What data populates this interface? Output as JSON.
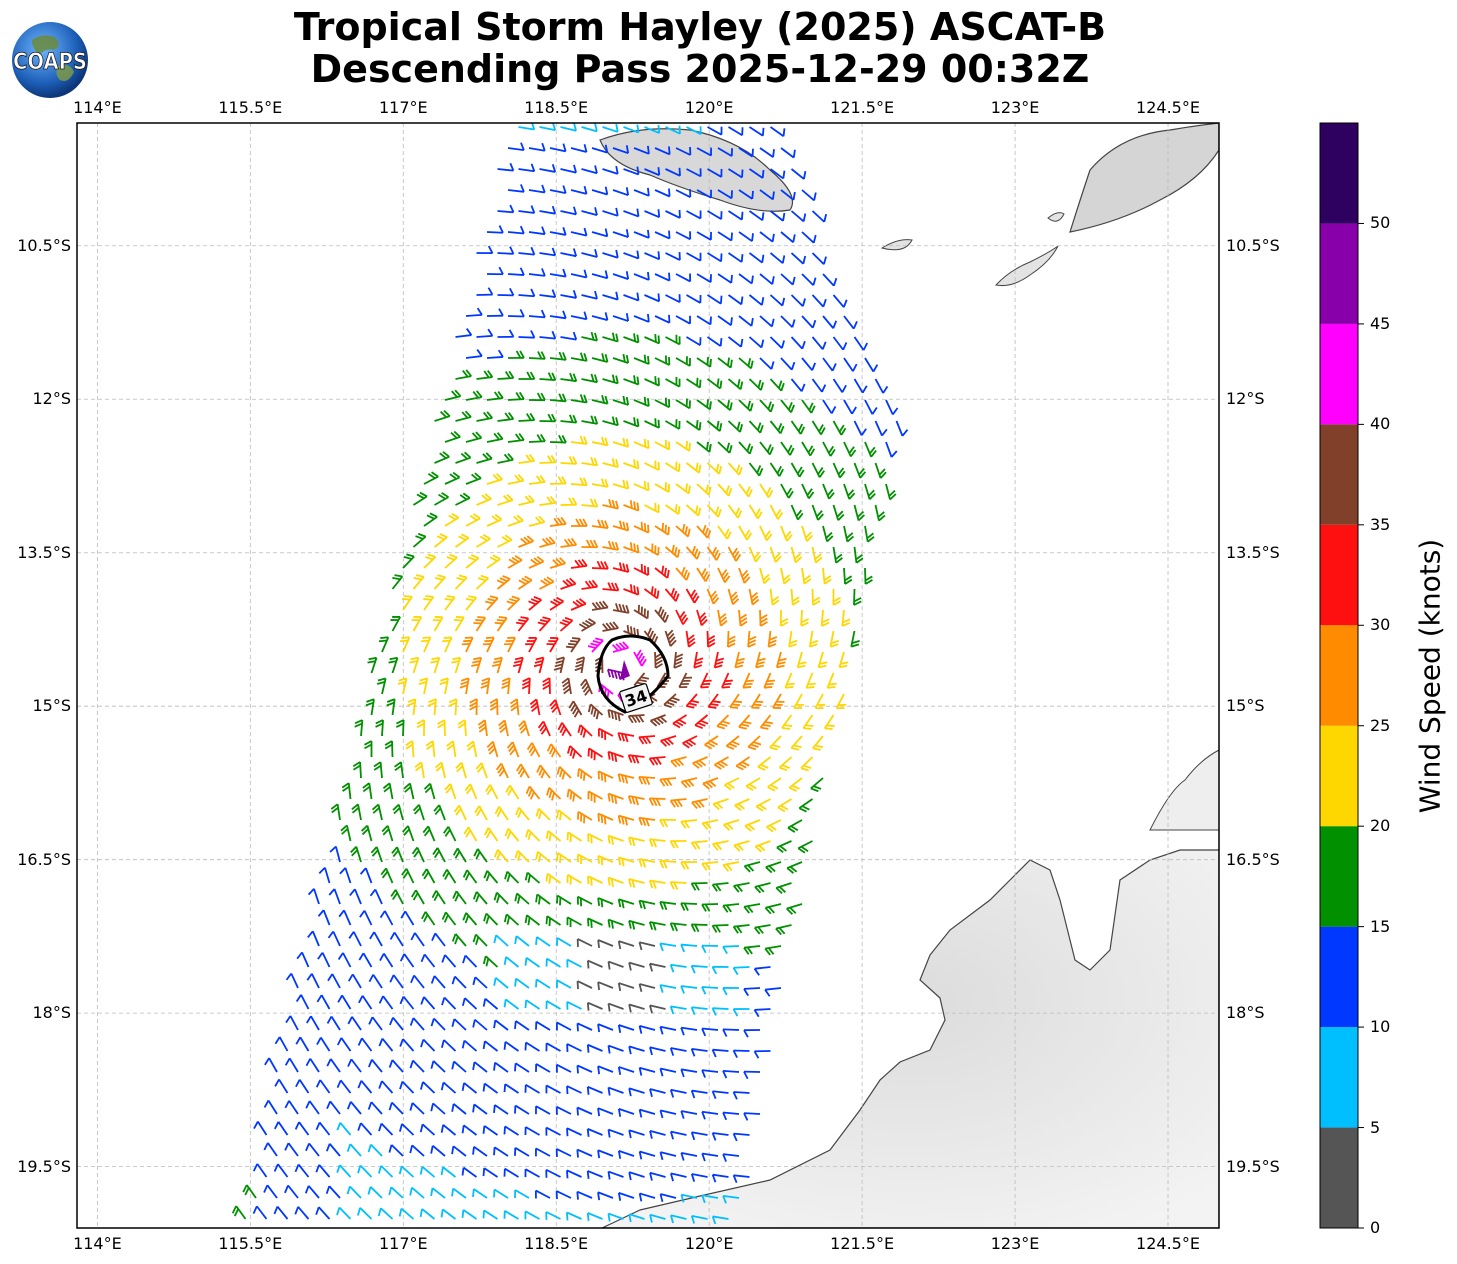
{
  "title": {
    "line1": "Tropical Storm Hayley (2025) ASCAT-B",
    "line2": "Descending Pass 2025-12-29 00:32Z"
  },
  "logo": {
    "text": "COAPS",
    "icon": "globe-icon"
  },
  "map": {
    "lon_range": [
      113.8,
      125.0
    ],
    "lat_range": [
      -9.3,
      -20.1
    ],
    "lon_ticks": [
      {
        "value": 114.0,
        "label": "114°E"
      },
      {
        "value": 115.5,
        "label": "115.5°E"
      },
      {
        "value": 117.0,
        "label": "117°E"
      },
      {
        "value": 118.5,
        "label": "118.5°E"
      },
      {
        "value": 120.0,
        "label": "120°E"
      },
      {
        "value": 121.5,
        "label": "121.5°E"
      },
      {
        "value": 123.0,
        "label": "123°E"
      },
      {
        "value": 124.5,
        "label": "124.5°E"
      }
    ],
    "lat_ticks": [
      {
        "value": -10.5,
        "label": "10.5°S"
      },
      {
        "value": -12.0,
        "label": "12°S"
      },
      {
        "value": -13.5,
        "label": "13.5°S"
      },
      {
        "value": -15.0,
        "label": "15°S"
      },
      {
        "value": -16.5,
        "label": "16.5°S"
      },
      {
        "value": -18.0,
        "label": "18°S"
      },
      {
        "value": -19.5,
        "label": "19.5°S"
      }
    ],
    "gridlines": true,
    "storm_center": {
      "lon": 119.15,
      "lat": -14.6
    },
    "contour_label": "34",
    "swath_polygon": [
      [
        118.0,
        -9.3
      ],
      [
        120.6,
        -9.3
      ],
      [
        121.9,
        -12.0
      ],
      [
        120.3,
        -20.1
      ],
      [
        115.4,
        -20.1
      ],
      [
        116.6,
        -15.0
      ]
    ]
  },
  "colorbar": {
    "title": "Wind Speed (knots)",
    "bins": [
      {
        "from": 0,
        "to": 5,
        "color": "#555555"
      },
      {
        "from": 5,
        "to": 10,
        "color": "#00bfff"
      },
      {
        "from": 10,
        "to": 15,
        "color": "#0038ff"
      },
      {
        "from": 15,
        "to": 20,
        "color": "#009000"
      },
      {
        "from": 20,
        "to": 25,
        "color": "#ffd700"
      },
      {
        "from": 25,
        "to": 30,
        "color": "#ff8c00"
      },
      {
        "from": 30,
        "to": 35,
        "color": "#ff1010"
      },
      {
        "from": 35,
        "to": 40,
        "color": "#80402a"
      },
      {
        "from": 40,
        "to": 45,
        "color": "#ff00ff"
      },
      {
        "from": 45,
        "to": 50,
        "color": "#8800aa"
      },
      {
        "from": 50,
        "to": 55,
        "color": "#2e0060"
      }
    ],
    "tick_labels": [
      "0",
      "5",
      "10",
      "15",
      "20",
      "25",
      "30",
      "35",
      "40",
      "45",
      "50"
    ]
  }
}
